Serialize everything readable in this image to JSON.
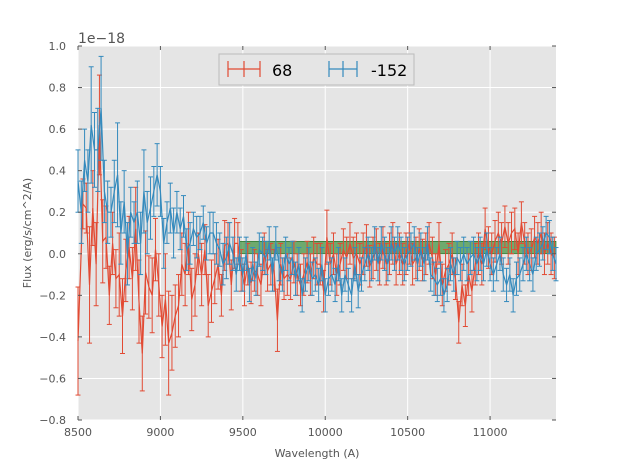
{
  "chart_data": {
    "type": "line",
    "style": "errorbar",
    "xlabel": "Wavelength (A)",
    "ylabel": "Flux (erg/s/cm^2/A)",
    "y_offset_label": "1e−18",
    "xlim": [
      8500,
      11400
    ],
    "ylim": [
      -0.8,
      1.0
    ],
    "x_ticks": [
      8500,
      9000,
      9500,
      10000,
      10500,
      11000
    ],
    "x_tick_labels": [
      "8500",
      "9000",
      "9500",
      "10000",
      "10500",
      "11000"
    ],
    "y_ticks": [
      -0.8,
      -0.6,
      -0.4,
      -0.2,
      0.0,
      0.2,
      0.4,
      0.6,
      0.8,
      1.0
    ],
    "y_tick_labels": [
      "−0.8",
      "−0.6",
      "−0.4",
      "−0.2",
      "0.0",
      "0.2",
      "0.4",
      "0.6",
      "0.8",
      "1.0"
    ],
    "grid": true,
    "legend_placement": "top-center",
    "background_color": "#e5e5e5",
    "band": {
      "x_range": [
        9480,
        11400
      ],
      "y_range": [
        0.0,
        0.06
      ],
      "color": "#2e8b2e"
    },
    "series": [
      {
        "name": "68",
        "color": "#e24a33",
        "x": [
          8500,
          8530,
          8550,
          8570,
          8590,
          8610,
          8630,
          8650,
          8670,
          8690,
          8710,
          8730,
          8750,
          8770,
          8790,
          8810,
          8830,
          8850,
          8870,
          8890,
          8910,
          8930,
          8950,
          8970,
          8990,
          9010,
          9030,
          9050,
          9070,
          9090,
          9110,
          9130,
          9150,
          9170,
          9190,
          9210,
          9230,
          9250,
          9270,
          9290,
          9310,
          9330,
          9350,
          9370,
          9390,
          9410,
          9430,
          9450,
          9470,
          9490,
          9510,
          9530,
          9550,
          9570,
          9590,
          9610,
          9630,
          9650,
          9670,
          9690,
          9710,
          9730,
          9750,
          9770,
          9790,
          9810,
          9830,
          9850,
          9870,
          9890,
          9910,
          9930,
          9950,
          9970,
          9990,
          10010,
          10030,
          10050,
          10070,
          10090,
          10110,
          10130,
          10150,
          10170,
          10190,
          10210,
          10230,
          10250,
          10270,
          10290,
          10310,
          10330,
          10350,
          10370,
          10390,
          10410,
          10430,
          10450,
          10470,
          10490,
          10510,
          10530,
          10550,
          10570,
          10590,
          10610,
          10630,
          10650,
          10670,
          10690,
          10710,
          10730,
          10750,
          10770,
          10790,
          10810,
          10830,
          10850,
          10870,
          10890,
          10910,
          10930,
          10950,
          10970,
          10990,
          11010,
          11030,
          11050,
          11070,
          11090,
          11110,
          11130,
          11150,
          11170,
          11190,
          11210,
          11230,
          11250,
          11270,
          11290,
          11310,
          11330,
          11350,
          11370,
          11390
        ],
        "y": [
          -0.42,
          0.24,
          0.22,
          -0.15,
          0.22,
          -0.05,
          0.62,
          0.06,
          0.08,
          -0.2,
          0.05,
          -0.12,
          -0.1,
          -0.3,
          -0.08,
          0.03,
          -0.12,
          0.12,
          -0.23,
          -0.48,
          -0.09,
          -0.16,
          -0.2,
          0.02,
          -0.15,
          -0.35,
          -0.22,
          -0.43,
          -0.38,
          -0.3,
          -0.25,
          -0.05,
          -0.1,
          0.05,
          -0.22,
          -0.15,
          0.0,
          -0.1,
          0.02,
          -0.25,
          -0.18,
          -0.12,
          -0.05,
          -0.2,
          0.04,
          0.05,
          -0.15,
          0.05,
          0.05,
          -0.08,
          -0.15,
          -0.05,
          -0.14,
          -0.08,
          -0.1,
          -0.15,
          0.0,
          -0.08,
          -0.05,
          -0.08,
          -0.32,
          -0.05,
          -0.12,
          -0.1,
          -0.12,
          -0.04,
          -0.1,
          -0.15,
          -0.1,
          -0.04,
          -0.1,
          -0.02,
          -0.05,
          -0.05,
          -0.18,
          0.08,
          -0.05,
          0.0,
          -0.1,
          -0.05,
          0.02,
          -0.02,
          0.05,
          -0.02,
          0.0,
          -0.05,
          0.0,
          0.04,
          -0.06,
          -0.02,
          0.02,
          -0.05,
          0.03,
          -0.05,
          0.0,
          0.05,
          -0.05,
          0.0,
          -0.05,
          0.0,
          0.05,
          -0.05,
          -0.02,
          0.02,
          -0.03,
          0.0,
          0.05,
          -0.02,
          -0.1,
          0.05,
          -0.15,
          -0.08,
          -0.05,
          0.0,
          -0.12,
          -0.33,
          -0.15,
          -0.25,
          -0.1,
          -0.18,
          -0.05,
          0.0,
          -0.05,
          0.12,
          0.03,
          0.0,
          0.06,
          0.1,
          0.05,
          0.13,
          0.05,
          0.1,
          0.12,
          0.0,
          0.15,
          0.05,
          0.0,
          0.02,
          0.08,
          0.05,
          0.1,
          0.0,
          0.05,
          0.0,
          -0.02
        ],
        "err": [
          0.26,
          0.12,
          0.12,
          0.28,
          0.18,
          0.2,
          0.24,
          0.2,
          0.15,
          0.14,
          0.15,
          0.14,
          0.2,
          0.18,
          0.15,
          0.15,
          0.15,
          0.2,
          0.2,
          0.18,
          0.2,
          0.15,
          0.18,
          0.15,
          0.15,
          0.15,
          0.22,
          0.25,
          0.18,
          0.15,
          0.15,
          0.15,
          0.15,
          0.15,
          0.15,
          0.15,
          0.1,
          0.15,
          0.12,
          0.15,
          0.15,
          0.12,
          0.12,
          0.1,
          0.12,
          0.1,
          0.12,
          0.12,
          0.1,
          0.1,
          0.1,
          0.1,
          0.1,
          0.1,
          0.1,
          0.1,
          0.1,
          0.1,
          0.1,
          0.1,
          0.15,
          0.1,
          0.1,
          0.1,
          0.1,
          0.1,
          0.1,
          0.1,
          0.1,
          0.1,
          0.1,
          0.1,
          0.1,
          0.1,
          0.1,
          0.13,
          0.1,
          0.1,
          0.1,
          0.1,
          0.1,
          0.1,
          0.1,
          0.1,
          0.1,
          0.1,
          0.1,
          0.1,
          0.1,
          0.1,
          0.1,
          0.1,
          0.1,
          0.1,
          0.1,
          0.1,
          0.1,
          0.1,
          0.1,
          0.1,
          0.1,
          0.1,
          0.1,
          0.1,
          0.1,
          0.1,
          0.1,
          0.1,
          0.1,
          0.1,
          0.1,
          0.1,
          0.1,
          0.1,
          0.1,
          0.1,
          0.1,
          0.1,
          0.1,
          0.1,
          0.1,
          0.1,
          0.1,
          0.1,
          0.1,
          0.1,
          0.1,
          0.1,
          0.1,
          0.1,
          0.1,
          0.1,
          0.1,
          0.1,
          0.1,
          0.1,
          0.1,
          0.1,
          0.1,
          0.1,
          0.1,
          0.1,
          0.1,
          0.1,
          0.1
        ]
      },
      {
        "name": "-152",
        "color": "#348abd",
        "x": [
          8500,
          8520,
          8540,
          8560,
          8580,
          8600,
          8620,
          8640,
          8660,
          8680,
          8700,
          8720,
          8740,
          8760,
          8780,
          8800,
          8820,
          8840,
          8860,
          8880,
          8900,
          8920,
          8940,
          8960,
          8980,
          9000,
          9020,
          9040,
          9060,
          9080,
          9100,
          9120,
          9140,
          9160,
          9180,
          9200,
          9220,
          9240,
          9260,
          9280,
          9300,
          9320,
          9340,
          9360,
          9380,
          9400,
          9420,
          9440,
          9460,
          9480,
          9500,
          9520,
          9540,
          9560,
          9580,
          9600,
          9620,
          9640,
          9660,
          9680,
          9700,
          9720,
          9740,
          9760,
          9780,
          9800,
          9820,
          9840,
          9860,
          9880,
          9900,
          9920,
          9940,
          9960,
          9980,
          10000,
          10020,
          10040,
          10060,
          10080,
          10100,
          10120,
          10140,
          10160,
          10180,
          10200,
          10220,
          10240,
          10260,
          10280,
          10300,
          10320,
          10340,
          10360,
          10380,
          10400,
          10420,
          10440,
          10460,
          10480,
          10500,
          10520,
          10540,
          10560,
          10580,
          10600,
          10620,
          10640,
          10660,
          10680,
          10700,
          10720,
          10740,
          10760,
          10780,
          10800,
          10820,
          10840,
          10860,
          10880,
          10900,
          10920,
          10940,
          10960,
          10980,
          11000,
          11020,
          11040,
          11060,
          11080,
          11100,
          11120,
          11140,
          11160,
          11180,
          11200,
          11220,
          11240,
          11260,
          11280,
          11300,
          11320,
          11340,
          11360,
          11380,
          11400
        ],
        "y": [
          0.35,
          0.2,
          0.45,
          0.35,
          0.62,
          0.5,
          0.5,
          0.7,
          0.3,
          0.2,
          0.2,
          0.3,
          0.38,
          0.1,
          0.25,
          0.0,
          0.2,
          0.15,
          0.2,
          0.05,
          0.3,
          0.15,
          0.22,
          0.3,
          0.38,
          0.3,
          0.05,
          0.15,
          0.22,
          0.1,
          0.2,
          0.12,
          0.18,
          0.02,
          0.05,
          0.12,
          0.08,
          0.1,
          0.15,
          0.05,
          0.1,
          0.1,
          0.05,
          0.02,
          -0.05,
          -0.02,
          0.05,
          0.0,
          -0.1,
          0.0,
          -0.1,
          0.0,
          -0.15,
          -0.05,
          -0.12,
          0.02,
          0.0,
          -0.02,
          0.05,
          -0.1,
          0.05,
          -0.05,
          -0.1,
          0.0,
          -0.05,
          -0.02,
          -0.12,
          -0.05,
          -0.2,
          -0.1,
          -0.05,
          -0.12,
          -0.1,
          -0.15,
          -0.05,
          -0.2,
          -0.12,
          -0.1,
          -0.15,
          -0.05,
          -0.2,
          -0.1,
          -0.15,
          -0.2,
          -0.05,
          -0.18,
          -0.1,
          -0.05,
          0.0,
          -0.05,
          0.05,
          -0.05,
          0.05,
          0.0,
          -0.05,
          0.05,
          0.0,
          0.05,
          0.0,
          -0.05,
          0.0,
          0.02,
          0.05,
          -0.05,
          0.02,
          -0.05,
          0.05,
          -0.1,
          -0.12,
          -0.15,
          -0.12,
          -0.2,
          -0.15,
          -0.05,
          -0.1,
          -0.02,
          -0.05,
          0.0,
          -0.05,
          -0.02,
          0.0,
          -0.05,
          0.0,
          -0.05,
          0.02,
          -0.05,
          -0.1,
          -0.05,
          0.0,
          -0.1,
          -0.15,
          -0.1,
          -0.2,
          -0.12,
          -0.1,
          -0.05,
          0.0,
          -0.05,
          -0.1,
          0.0,
          0.02,
          0.05,
          0.1,
          0.08,
          0.0,
          -0.05
        ],
        "err": [
          0.15,
          0.15,
          0.15,
          0.15,
          0.28,
          0.18,
          0.2,
          0.25,
          0.15,
          0.15,
          0.12,
          0.15,
          0.25,
          0.15,
          0.15,
          0.15,
          0.12,
          0.1,
          0.15,
          0.15,
          0.2,
          0.15,
          0.15,
          0.12,
          0.15,
          0.12,
          0.12,
          0.1,
          0.12,
          0.12,
          0.1,
          0.1,
          0.1,
          0.1,
          0.1,
          0.08,
          0.1,
          0.08,
          0.08,
          0.08,
          0.1,
          0.1,
          0.1,
          0.08,
          0.1,
          0.1,
          0.1,
          0.08,
          0.08,
          0.08,
          0.08,
          0.08,
          0.08,
          0.08,
          0.08,
          0.08,
          0.08,
          0.08,
          0.08,
          0.08,
          0.08,
          0.08,
          0.08,
          0.08,
          0.08,
          0.08,
          0.08,
          0.08,
          0.08,
          0.08,
          0.08,
          0.08,
          0.08,
          0.08,
          0.08,
          0.08,
          0.08,
          0.08,
          0.08,
          0.08,
          0.08,
          0.08,
          0.08,
          0.08,
          0.08,
          0.08,
          0.08,
          0.08,
          0.08,
          0.08,
          0.08,
          0.08,
          0.08,
          0.08,
          0.08,
          0.08,
          0.08,
          0.08,
          0.08,
          0.08,
          0.08,
          0.08,
          0.08,
          0.08,
          0.08,
          0.08,
          0.08,
          0.08,
          0.08,
          0.08,
          0.08,
          0.08,
          0.08,
          0.08,
          0.08,
          0.08,
          0.08,
          0.08,
          0.08,
          0.08,
          0.08,
          0.08,
          0.08,
          0.08,
          0.08,
          0.08,
          0.08,
          0.08,
          0.08,
          0.08,
          0.08,
          0.08,
          0.08,
          0.08,
          0.08,
          0.08,
          0.08,
          0.08,
          0.08,
          0.08,
          0.08,
          0.08,
          0.08,
          0.08,
          0.08,
          0.08
        ]
      }
    ]
  }
}
